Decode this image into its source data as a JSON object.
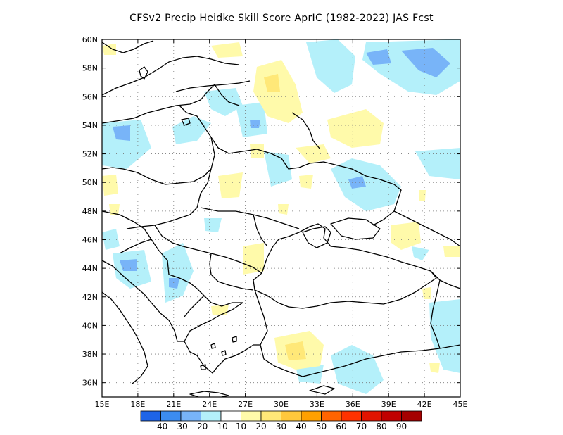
{
  "title": "CFSv2 Precip Heidke Skill Score AprIC (1982-2022) JAS Fcst",
  "map": {
    "lon_range": [
      15,
      45
    ],
    "lat_range": [
      35,
      60
    ],
    "lon_ticks": [
      "15E",
      "18E",
      "21E",
      "24E",
      "27E",
      "30E",
      "33E",
      "36E",
      "39E",
      "42E",
      "45E"
    ],
    "lat_ticks": [
      "36N",
      "38N",
      "40N",
      "42N",
      "44N",
      "46N",
      "48N",
      "50N",
      "52N",
      "54N",
      "56N",
      "58N",
      "60N"
    ],
    "gridlines": "dotted"
  },
  "colorbar": {
    "colors": [
      "#1e64e8",
      "#3c8cf0",
      "#78b4f8",
      "#b4f0fa",
      "#ffffff",
      "#fffaaa",
      "#ffe878",
      "#ffc83c",
      "#ffa000",
      "#ff6400",
      "#ff3200",
      "#e11400",
      "#c00000",
      "#a50000"
    ],
    "labels": [
      "-40",
      "-30",
      "-20",
      "-10",
      "10",
      "20",
      "30",
      "40",
      "50",
      "60",
      "70",
      "80",
      "90"
    ]
  }
}
